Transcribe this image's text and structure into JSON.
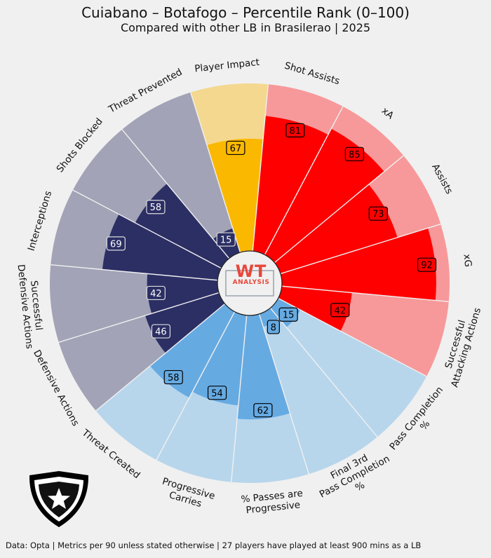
{
  "title": "Cuiabano – Botafogo – Percentile Rank (0–100)",
  "subtitle": "Compared with other LB in Brasilerao | 2025",
  "footer": "Data: Opta | Metrics per 90 unless stated otherwise | 27 players have played at least 900 mins as a LB",
  "logo": {
    "line1": "WT",
    "line2": "ANALYSIS"
  },
  "colors": {
    "attack": "#ff0000",
    "attack_bg": "#f7999a",
    "possession": "#66aae2",
    "possession_bg": "#b7d6ec",
    "defense": "#2c2f64",
    "defense_bg": "#a2a3b6",
    "impact": "#fbb800",
    "impact_bg": "#f5d88f"
  },
  "chart_data": {
    "type": "polar-bar",
    "range": [
      0,
      100
    ],
    "metrics": [
      {
        "label": "Shot Assists",
        "value": 81,
        "group": "attack"
      },
      {
        "label": "xA",
        "value": 85,
        "group": "attack"
      },
      {
        "label": "Assists",
        "value": 73,
        "group": "attack"
      },
      {
        "label": "xG",
        "value": 92,
        "group": "attack"
      },
      {
        "label": "Successful\nAttacking Actions",
        "value": 42,
        "group": "attack"
      },
      {
        "label": "Pass Completion\n%",
        "value": 15,
        "group": "possession"
      },
      {
        "label": "Final 3rd\nPass Completion\n%",
        "value": 8,
        "group": "possession"
      },
      {
        "label": "% Passes are\nProgressive",
        "value": 62,
        "group": "possession"
      },
      {
        "label": "Progressive\nCarries",
        "value": 54,
        "group": "possession"
      },
      {
        "label": "Threat Created",
        "value": 58,
        "group": "possession"
      },
      {
        "label": "Defensive Actions",
        "value": 46,
        "group": "defense"
      },
      {
        "label": "Successful\nDefensive Actions",
        "value": 42,
        "group": "defense"
      },
      {
        "label": "Interceptions",
        "value": 69,
        "group": "defense"
      },
      {
        "label": "Shots Blocked",
        "value": 58,
        "group": "defense"
      },
      {
        "label": "Threat Prevented",
        "value": 15,
        "group": "defense"
      },
      {
        "label": "Player Impact",
        "value": 67,
        "group": "impact"
      }
    ]
  }
}
